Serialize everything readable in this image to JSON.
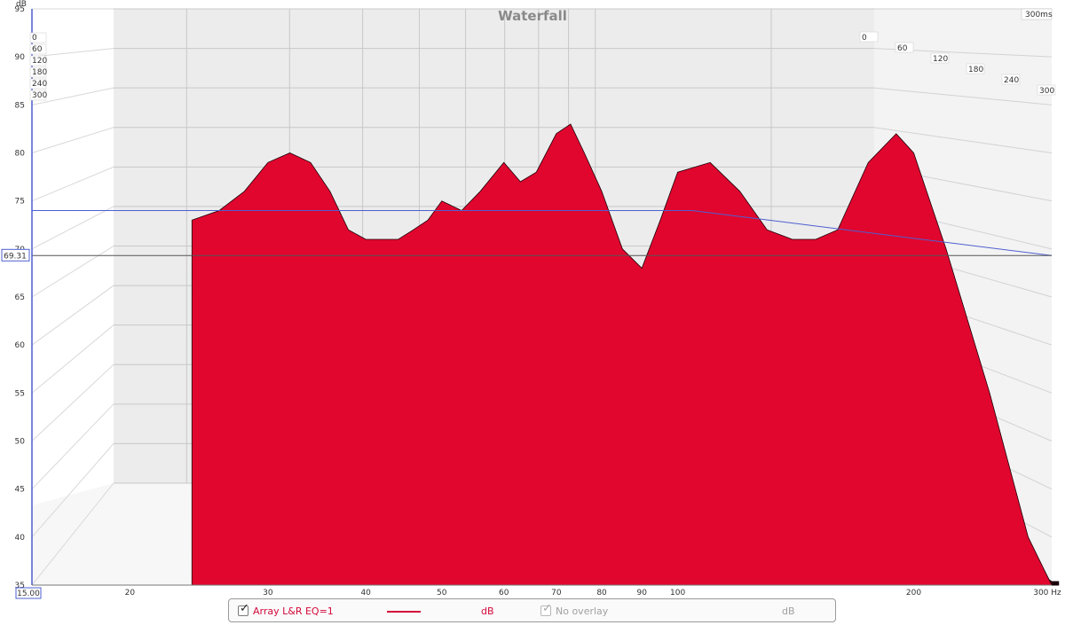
{
  "chart_data": {
    "type": "area",
    "title": "Waterfall",
    "time_max_label": "300ms",
    "y_unit": "dB",
    "x_unit": "Hz",
    "ylim": [
      35,
      95
    ],
    "xlim": [
      15,
      300
    ],
    "x_scale": "log",
    "yticks": [
      35,
      40,
      45,
      50,
      55,
      60,
      65,
      70,
      75,
      80,
      85,
      90,
      95
    ],
    "xticks": [
      20,
      30,
      40,
      50,
      60,
      70,
      80,
      90,
      100,
      200
    ],
    "x_start_label": "15.00",
    "x_end_label": "300 Hz",
    "cursor_y_label": "69.31",
    "time_ticks": [
      "0",
      "60",
      "120",
      "180",
      "240",
      "300"
    ],
    "reference_level_db": 74,
    "series": [
      {
        "name": "Array L&R EQ=1",
        "color": "#e8062e",
        "x": [
          24,
          26,
          28,
          30,
          32,
          34,
          36,
          38,
          40,
          42,
          44,
          46,
          48,
          50,
          53,
          56,
          60,
          63,
          66,
          70,
          73,
          76,
          80,
          85,
          90,
          95,
          100,
          110,
          120,
          130,
          140,
          150,
          160,
          175,
          190,
          200,
          220,
          250,
          280,
          300
        ],
        "first_slice_db": [
          73,
          74,
          76,
          79,
          80,
          79,
          76,
          72,
          71,
          71,
          71,
          72,
          73,
          75,
          74,
          76,
          79,
          77,
          78,
          82,
          83,
          80,
          76,
          70,
          68,
          73,
          78,
          79,
          76,
          72,
          71,
          71,
          72,
          79,
          82,
          80,
          70,
          55,
          40,
          35
        ]
      }
    ]
  },
  "legend": {
    "series_label": "Array L&R EQ=1",
    "series_unit": "dB",
    "overlay_label": "No overlay",
    "overlay_unit": "dB"
  }
}
